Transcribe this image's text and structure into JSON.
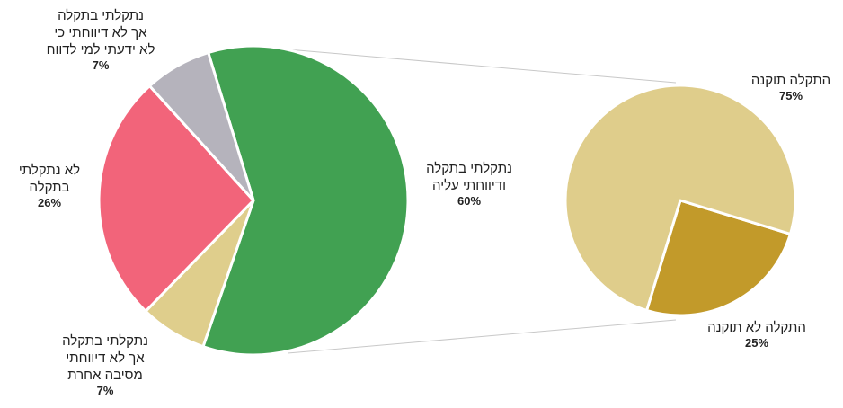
{
  "chart_data": [
    {
      "type": "pie",
      "categories": [
        "נתקלתי בתקלה\nודיווחתי עליה",
        "נתקלתי בתקלה\nאך לא דיווחתי\nמסיבה אחרת",
        "לא נתקלתי\nבתקלה",
        "נתקלתי בתקלה\nאך לא דיווחתי כי\nלא ידעתי למי לדווח"
      ],
      "values": [
        60,
        7,
        26,
        7
      ],
      "value_labels": [
        "60%",
        "7%",
        "26%",
        "7%"
      ],
      "colors": [
        "#41a152",
        "#dfce8c",
        "#f2647a",
        "#b5b3bc"
      ]
    },
    {
      "type": "pie",
      "categories": [
        "התקלה לא תוקנה",
        "התקלה תוקנה"
      ],
      "values": [
        25,
        75
      ],
      "value_labels": [
        "25%",
        "75%"
      ],
      "colors": [
        "#c29a2a",
        "#dfcd8b"
      ]
    }
  ]
}
